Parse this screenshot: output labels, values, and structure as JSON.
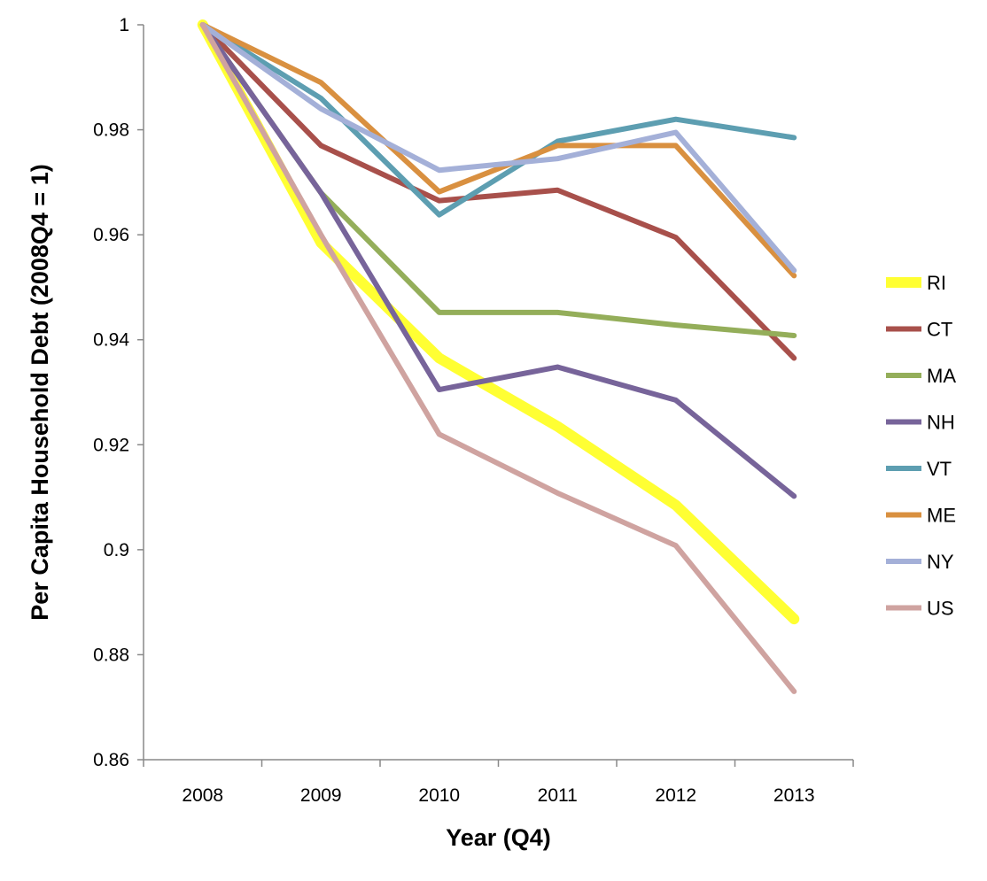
{
  "chart_data": {
    "type": "line",
    "title": "",
    "xlabel": "Year (Q4)",
    "ylabel": "Per Capita Household Debt (2008Q4 = 1)",
    "categories": [
      "2008",
      "2009",
      "2010",
      "2011",
      "2012",
      "2013"
    ],
    "ylim": [
      0.86,
      1.0
    ],
    "yticks": [
      0.86,
      0.88,
      0.9,
      0.92,
      0.94,
      0.96,
      0.98,
      1
    ],
    "ytick_labels": [
      "0.86",
      "0.88",
      "0.9",
      "0.92",
      "0.94",
      "0.96",
      "0.98",
      "1"
    ],
    "grid": false,
    "legend": "right",
    "series": [
      {
        "name": "RI",
        "color": "#FFFF33",
        "emphasis": true,
        "values": [
          1.0,
          0.9585,
          0.9365,
          0.9235,
          0.9085,
          0.8868
        ]
      },
      {
        "name": "CT",
        "color": "#A8504B",
        "values": [
          1.0,
          0.977,
          0.9665,
          0.9685,
          0.9595,
          0.9365
        ]
      },
      {
        "name": "MA",
        "color": "#94AE5A",
        "values": [
          1.0,
          0.968,
          0.9452,
          0.9452,
          0.9428,
          0.9408
        ]
      },
      {
        "name": "NH",
        "color": "#77649A",
        "values": [
          1.0,
          0.968,
          0.9305,
          0.9348,
          0.9285,
          0.9102
        ]
      },
      {
        "name": "VT",
        "color": "#5D9EB1",
        "values": [
          1.0,
          0.986,
          0.9638,
          0.9778,
          0.982,
          0.9785
        ]
      },
      {
        "name": "ME",
        "color": "#D99040",
        "values": [
          1.0,
          0.989,
          0.9682,
          0.977,
          0.977,
          0.9522
        ]
      },
      {
        "name": "NY",
        "color": "#A4B0D8",
        "values": [
          1.0,
          0.984,
          0.9723,
          0.9745,
          0.9795,
          0.9532
        ]
      },
      {
        "name": "US",
        "color": "#CFA3A0",
        "values": [
          1.0,
          0.96,
          0.922,
          0.9108,
          0.9008,
          0.873
        ]
      }
    ]
  }
}
